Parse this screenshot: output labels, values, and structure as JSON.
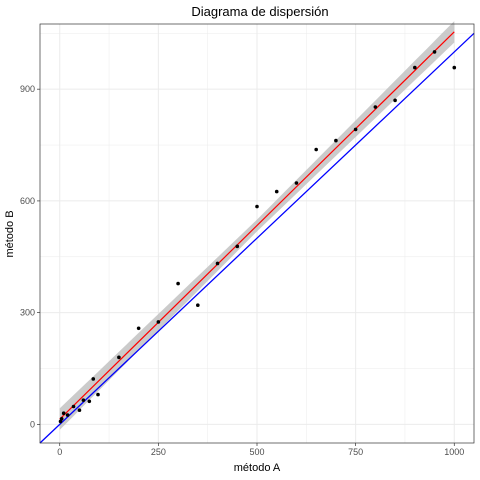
{
  "chart_data": {
    "type": "scatter",
    "title": "Diagrama de dispersión",
    "xlabel": "método A",
    "ylabel": "método B",
    "xlim": [
      -50,
      1050
    ],
    "ylim": [
      -50,
      1075
    ],
    "x_ticks": [
      0,
      250,
      500,
      750,
      1000
    ],
    "y_ticks": [
      0,
      300,
      600,
      900
    ],
    "grid": true,
    "legend": "none",
    "series": [
      {
        "points": [
          [
            2,
            8
          ],
          [
            5,
            15
          ],
          [
            10,
            30
          ],
          [
            20,
            25
          ],
          [
            35,
            48
          ],
          [
            50,
            38
          ],
          [
            60,
            65
          ],
          [
            75,
            62
          ],
          [
            85,
            122
          ],
          [
            97,
            80
          ],
          [
            150,
            180
          ],
          [
            200,
            258
          ],
          [
            250,
            275
          ],
          [
            300,
            378
          ],
          [
            350,
            320
          ],
          [
            400,
            432
          ],
          [
            450,
            478
          ],
          [
            500,
            585
          ],
          [
            550,
            625
          ],
          [
            600,
            648
          ],
          [
            650,
            738
          ],
          [
            700,
            762
          ],
          [
            750,
            792
          ],
          [
            800,
            852
          ],
          [
            850,
            870
          ],
          [
            900,
            958
          ],
          [
            950,
            1000
          ],
          [
            1000,
            958
          ]
        ]
      }
    ],
    "regression_line": {
      "slope": 1.04,
      "intercept": 14,
      "x_range": [
        0,
        1000
      ],
      "confidence_band_halfwidth": 18
    },
    "identity_line": {
      "slope": 1,
      "intercept": 0
    },
    "colors": {
      "points": "#000000",
      "regression": "#ff0000",
      "identity": "#0000ff",
      "band": "#bebebe",
      "grid": "#ebebeb",
      "panel_border": "#333333"
    }
  }
}
